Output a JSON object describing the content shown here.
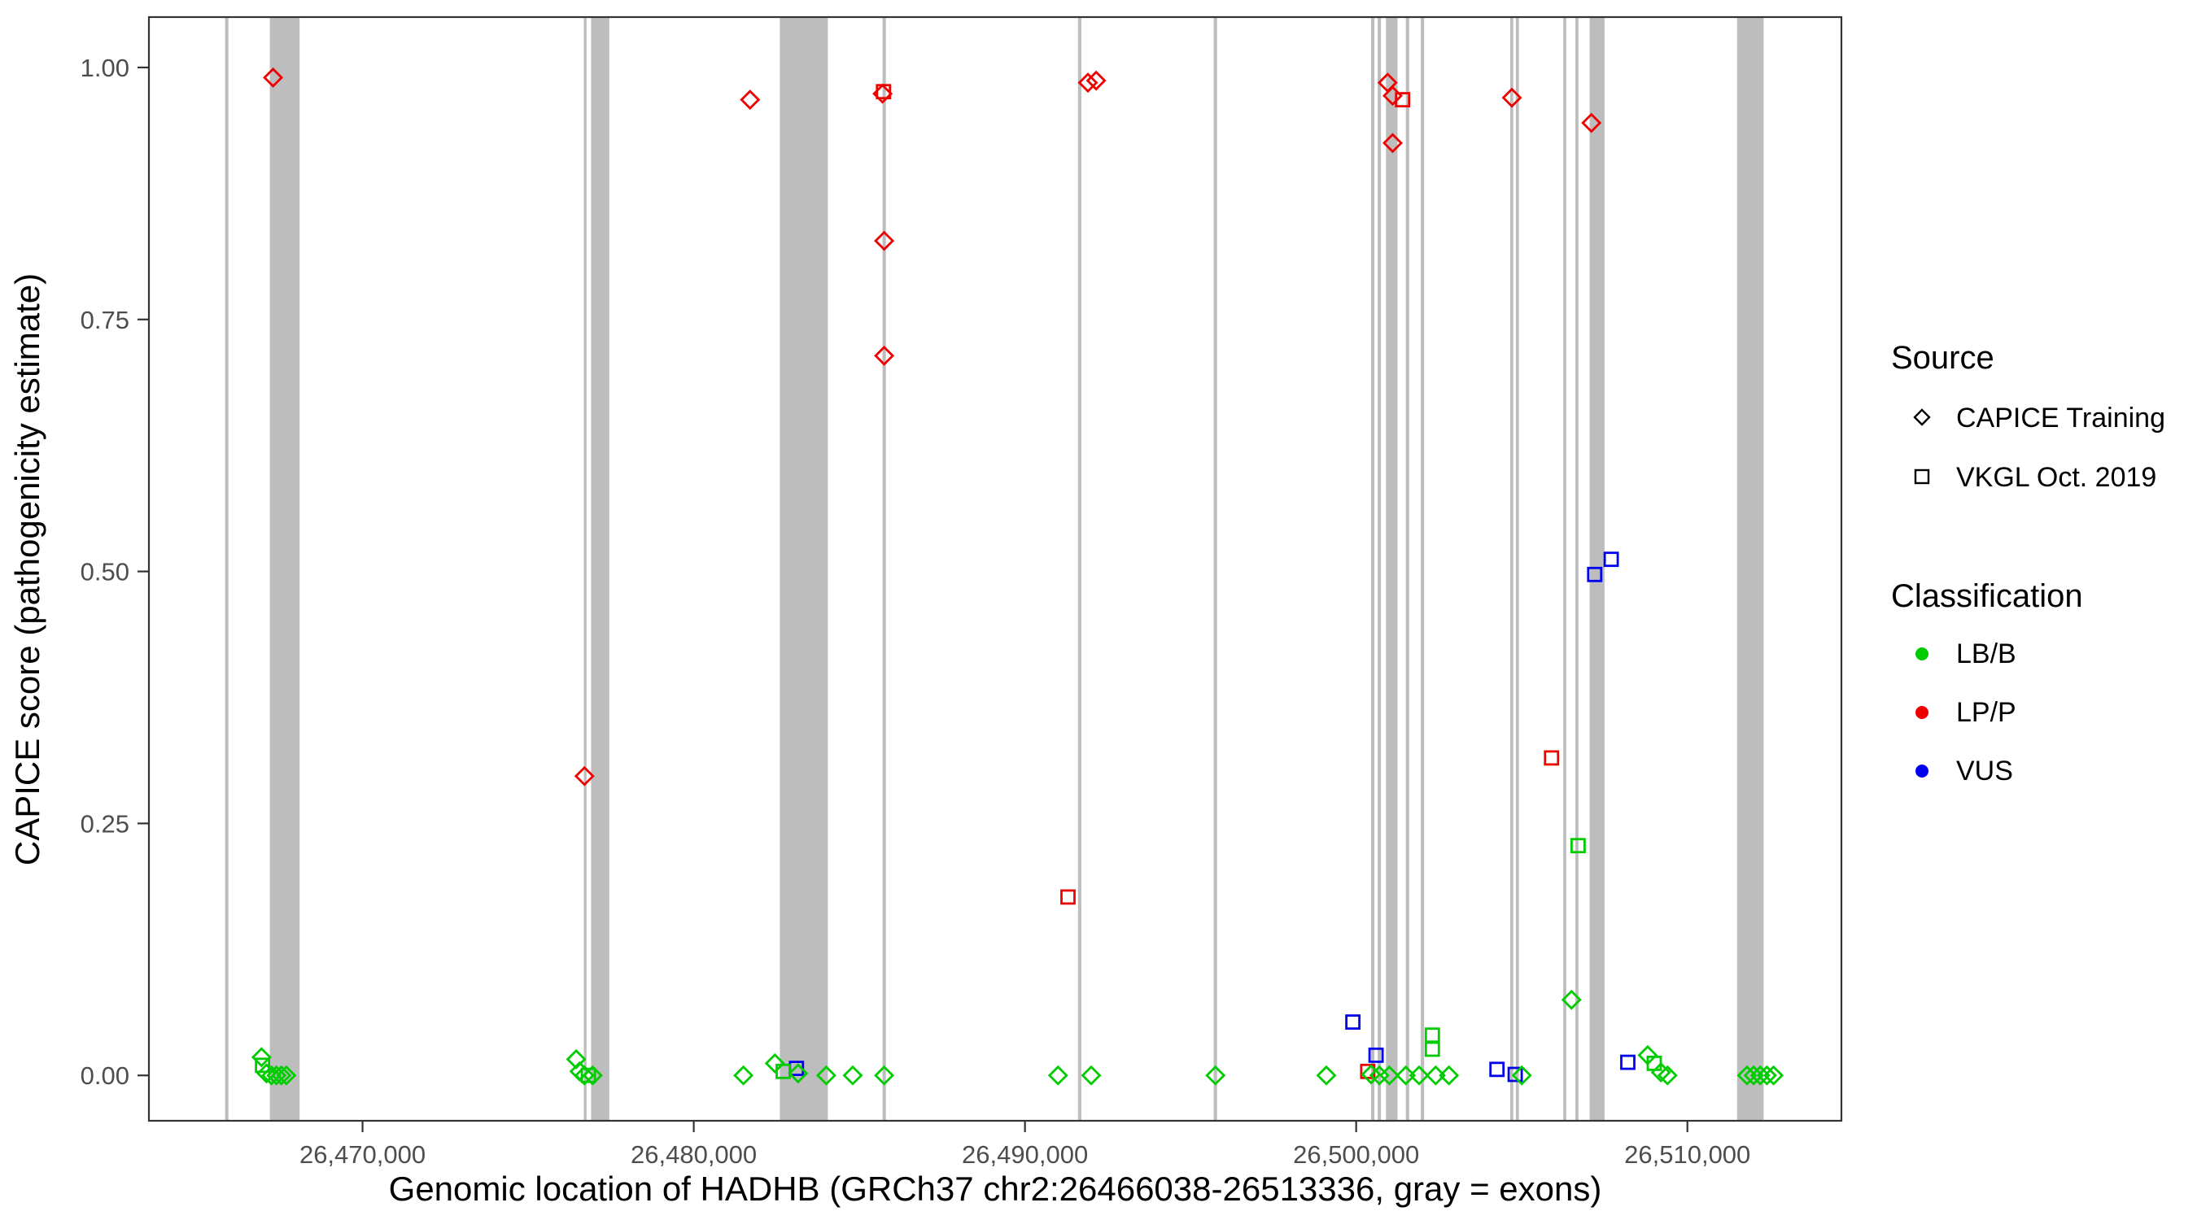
{
  "chart_data": {
    "type": "scatter",
    "title": "",
    "xlabel": "Genomic location of HADHB (GRCh37 chr2:26466038-26513336, gray = exons)",
    "ylabel": "CAPICE score (pathogenicity estimate)",
    "xlim": [
      26463550,
      26514650
    ],
    "ylim": [
      -0.045,
      1.05
    ],
    "grid": "off",
    "legend_position": "right",
    "x_ticks": [
      {
        "v": 26470000,
        "label": "26,470,000"
      },
      {
        "v": 26480000,
        "label": "26,480,000"
      },
      {
        "v": 26490000,
        "label": "26,490,000"
      },
      {
        "v": 26500000,
        "label": "26,500,000"
      },
      {
        "v": 26510000,
        "label": "26,510,000"
      }
    ],
    "y_ticks": [
      {
        "v": 0.0,
        "label": "0.00"
      },
      {
        "v": 0.25,
        "label": "0.25"
      },
      {
        "v": 0.5,
        "label": "0.50"
      },
      {
        "v": 0.75,
        "label": "0.75"
      },
      {
        "v": 1.0,
        "label": "1.00"
      }
    ],
    "colors": {
      "LB/B": "#00CC00",
      "LP/P": "#EE0000",
      "VUS": "#0000EE",
      "exon": "#BDBDBD",
      "axis": "#333333",
      "tick_text": "#4d4d4d"
    },
    "legend": {
      "source": {
        "title": "Source",
        "items": [
          {
            "label": "CAPICE Training",
            "shape": "diamond"
          },
          {
            "label": "VKGL Oct. 2019",
            "shape": "square"
          }
        ]
      },
      "classification": {
        "title": "Classification",
        "items": [
          {
            "label": "LB/B",
            "color": "#00CC00"
          },
          {
            "label": "LP/P",
            "color": "#EE0000"
          },
          {
            "label": "VUS",
            "color": "#0000EE"
          }
        ]
      }
    },
    "exons": [
      {
        "start": 26465850,
        "end": 26465950
      },
      {
        "start": 26467200,
        "end": 26468100
      },
      {
        "start": 26476680,
        "end": 26476760
      },
      {
        "start": 26476900,
        "end": 26477450
      },
      {
        "start": 26482600,
        "end": 26484050
      },
      {
        "start": 26485700,
        "end": 26485800
      },
      {
        "start": 26491600,
        "end": 26491700
      },
      {
        "start": 26495700,
        "end": 26495800
      },
      {
        "start": 26500450,
        "end": 26500550
      },
      {
        "start": 26500650,
        "end": 26500750
      },
      {
        "start": 26500900,
        "end": 26501250
      },
      {
        "start": 26501500,
        "end": 26501600
      },
      {
        "start": 26501950,
        "end": 26502050
      },
      {
        "start": 26504650,
        "end": 26504740
      },
      {
        "start": 26504820,
        "end": 26504910
      },
      {
        "start": 26506250,
        "end": 26506340
      },
      {
        "start": 26506620,
        "end": 26506710
      },
      {
        "start": 26507050,
        "end": 26507500
      },
      {
        "start": 26511500,
        "end": 26512300
      }
    ],
    "points": [
      {
        "pos": 26467300,
        "score": 0.99,
        "source": "CAPICE Training",
        "cls": "LP/P"
      },
      {
        "pos": 26476700,
        "score": 0.297,
        "source": "CAPICE Training",
        "cls": "LP/P"
      },
      {
        "pos": 26481700,
        "score": 0.968,
        "source": "CAPICE Training",
        "cls": "LP/P"
      },
      {
        "pos": 26485700,
        "score": 0.974,
        "source": "CAPICE Training",
        "cls": "LP/P"
      },
      {
        "pos": 26485730,
        "score": 0.976,
        "source": "VKGL Oct. 2019",
        "cls": "LP/P"
      },
      {
        "pos": 26485750,
        "score": 0.828,
        "source": "CAPICE Training",
        "cls": "LP/P"
      },
      {
        "pos": 26485750,
        "score": 0.714,
        "source": "CAPICE Training",
        "cls": "LP/P"
      },
      {
        "pos": 26491900,
        "score": 0.985,
        "source": "CAPICE Training",
        "cls": "LP/P"
      },
      {
        "pos": 26492150,
        "score": 0.987,
        "source": "CAPICE Training",
        "cls": "LP/P"
      },
      {
        "pos": 26491300,
        "score": 0.177,
        "source": "VKGL Oct. 2019",
        "cls": "LP/P"
      },
      {
        "pos": 26500950,
        "score": 0.985,
        "source": "CAPICE Training",
        "cls": "LP/P"
      },
      {
        "pos": 26501100,
        "score": 0.972,
        "source": "CAPICE Training",
        "cls": "LP/P"
      },
      {
        "pos": 26501400,
        "score": 0.968,
        "source": "VKGL Oct. 2019",
        "cls": "LP/P"
      },
      {
        "pos": 26501100,
        "score": 0.925,
        "source": "CAPICE Training",
        "cls": "LP/P"
      },
      {
        "pos": 26504700,
        "score": 0.97,
        "source": "CAPICE Training",
        "cls": "LP/P"
      },
      {
        "pos": 26507100,
        "score": 0.945,
        "source": "CAPICE Training",
        "cls": "LP/P"
      },
      {
        "pos": 26505900,
        "score": 0.315,
        "source": "VKGL Oct. 2019",
        "cls": "LP/P"
      },
      {
        "pos": 26500350,
        "score": 0.004,
        "source": "VKGL Oct. 2019",
        "cls": "LP/P"
      },
      {
        "pos": 26507200,
        "score": 0.497,
        "source": "VKGL Oct. 2019",
        "cls": "VUS"
      },
      {
        "pos": 26507700,
        "score": 0.512,
        "source": "VKGL Oct. 2019",
        "cls": "VUS"
      },
      {
        "pos": 26499900,
        "score": 0.053,
        "source": "VKGL Oct. 2019",
        "cls": "VUS"
      },
      {
        "pos": 26500600,
        "score": 0.02,
        "source": "VKGL Oct. 2019",
        "cls": "VUS"
      },
      {
        "pos": 26483100,
        "score": 0.007,
        "source": "VKGL Oct. 2019",
        "cls": "VUS"
      },
      {
        "pos": 26504250,
        "score": 0.006,
        "source": "VKGL Oct. 2019",
        "cls": "VUS"
      },
      {
        "pos": 26504800,
        "score": 0.001,
        "source": "VKGL Oct. 2019",
        "cls": "VUS"
      },
      {
        "pos": 26508200,
        "score": 0.013,
        "source": "VKGL Oct. 2019",
        "cls": "VUS"
      },
      {
        "pos": 26466950,
        "score": 0.018,
        "source": "CAPICE Training",
        "cls": "LB/B"
      },
      {
        "pos": 26466980,
        "score": 0.01,
        "source": "VKGL Oct. 2019",
        "cls": "LB/B"
      },
      {
        "pos": 26467100,
        "score": 0.002,
        "source": "CAPICE Training",
        "cls": "LB/B"
      },
      {
        "pos": 26467250,
        "score": 0,
        "source": "CAPICE Training",
        "cls": "LB/B"
      },
      {
        "pos": 26467400,
        "score": 0,
        "source": "CAPICE Training",
        "cls": "LB/B"
      },
      {
        "pos": 26467550,
        "score": 0,
        "source": "CAPICE Training",
        "cls": "LB/B"
      },
      {
        "pos": 26467700,
        "score": 0,
        "source": "CAPICE Training",
        "cls": "LB/B"
      },
      {
        "pos": 26476450,
        "score": 0.016,
        "source": "CAPICE Training",
        "cls": "LB/B"
      },
      {
        "pos": 26476550,
        "score": 0.004,
        "source": "CAPICE Training",
        "cls": "LB/B"
      },
      {
        "pos": 26476700,
        "score": 0,
        "source": "CAPICE Training",
        "cls": "LB/B"
      },
      {
        "pos": 26476820,
        "score": 0,
        "source": "VKGL Oct. 2019",
        "cls": "LB/B"
      },
      {
        "pos": 26476950,
        "score": 0,
        "source": "CAPICE Training",
        "cls": "LB/B"
      },
      {
        "pos": 26481500,
        "score": 0,
        "source": "CAPICE Training",
        "cls": "LB/B"
      },
      {
        "pos": 26482450,
        "score": 0.012,
        "source": "CAPICE Training",
        "cls": "LB/B"
      },
      {
        "pos": 26482700,
        "score": 0.004,
        "source": "VKGL Oct. 2019",
        "cls": "LB/B"
      },
      {
        "pos": 26483150,
        "score": 0.002,
        "source": "CAPICE Training",
        "cls": "LB/B"
      },
      {
        "pos": 26484000,
        "score": 0,
        "source": "CAPICE Training",
        "cls": "LB/B"
      },
      {
        "pos": 26484800,
        "score": 0,
        "source": "CAPICE Training",
        "cls": "LB/B"
      },
      {
        "pos": 26485750,
        "score": 0,
        "source": "CAPICE Training",
        "cls": "LB/B"
      },
      {
        "pos": 26491000,
        "score": 0,
        "source": "CAPICE Training",
        "cls": "LB/B"
      },
      {
        "pos": 26492000,
        "score": 0,
        "source": "CAPICE Training",
        "cls": "LB/B"
      },
      {
        "pos": 26495750,
        "score": 0,
        "source": "CAPICE Training",
        "cls": "LB/B"
      },
      {
        "pos": 26499100,
        "score": 0,
        "source": "CAPICE Training",
        "cls": "LB/B"
      },
      {
        "pos": 26500450,
        "score": 0.001,
        "source": "CAPICE Training",
        "cls": "LB/B"
      },
      {
        "pos": 26500700,
        "score": 0,
        "source": "CAPICE Training",
        "cls": "LB/B"
      },
      {
        "pos": 26501000,
        "score": 0,
        "source": "CAPICE Training",
        "cls": "LB/B"
      },
      {
        "pos": 26501500,
        "score": 0,
        "source": "CAPICE Training",
        "cls": "LB/B"
      },
      {
        "pos": 26501900,
        "score": 0,
        "source": "CAPICE Training",
        "cls": "LB/B"
      },
      {
        "pos": 26502300,
        "score": 0.04,
        "source": "VKGL Oct. 2019",
        "cls": "LB/B"
      },
      {
        "pos": 26502300,
        "score": 0.026,
        "source": "VKGL Oct. 2019",
        "cls": "LB/B"
      },
      {
        "pos": 26502400,
        "score": 0,
        "source": "CAPICE Training",
        "cls": "LB/B"
      },
      {
        "pos": 26502800,
        "score": 0,
        "source": "CAPICE Training",
        "cls": "LB/B"
      },
      {
        "pos": 26505000,
        "score": 0,
        "source": "CAPICE Training",
        "cls": "LB/B"
      },
      {
        "pos": 26506500,
        "score": 0.075,
        "source": "CAPICE Training",
        "cls": "LB/B"
      },
      {
        "pos": 26506700,
        "score": 0.228,
        "source": "VKGL Oct. 2019",
        "cls": "LB/B"
      },
      {
        "pos": 26508800,
        "score": 0.02,
        "source": "CAPICE Training",
        "cls": "LB/B"
      },
      {
        "pos": 26509000,
        "score": 0.012,
        "source": "VKGL Oct. 2019",
        "cls": "LB/B"
      },
      {
        "pos": 26509200,
        "score": 0.003,
        "source": "CAPICE Training",
        "cls": "LB/B"
      },
      {
        "pos": 26509400,
        "score": 0,
        "source": "CAPICE Training",
        "cls": "LB/B"
      },
      {
        "pos": 26511800,
        "score": 0,
        "source": "CAPICE Training",
        "cls": "LB/B"
      },
      {
        "pos": 26512000,
        "score": 0,
        "source": "CAPICE Training",
        "cls": "LB/B"
      },
      {
        "pos": 26512200,
        "score": 0,
        "source": "CAPICE Training",
        "cls": "LB/B"
      },
      {
        "pos": 26512400,
        "score": 0,
        "source": "CAPICE Training",
        "cls": "LB/B"
      },
      {
        "pos": 26512600,
        "score": 0,
        "source": "CAPICE Training",
        "cls": "LB/B"
      }
    ]
  }
}
